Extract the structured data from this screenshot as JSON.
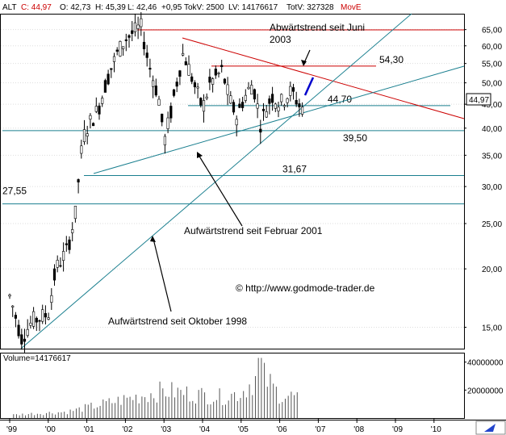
{
  "header": {
    "symbol": "ALT",
    "close_label": "C: 44,97",
    "open_label": "O: 42,73",
    "high_label": "H: 45,39",
    "low_label": "L: 42,46",
    "change_label": "+0,95",
    "tokv_label": "TokV: 2500",
    "lv_label": "LV: 14176617",
    "totv_label": "TotV: 327328",
    "indicator_label": "MovE",
    "colors": {
      "symbol": "#000000",
      "close": "#cc0000",
      "indicator": "#cc0000"
    }
  },
  "volume_label": "Volume=14176617",
  "copyright": "© http://www.godmode-trader.de",
  "last_price_tag": "44,97",
  "chart_data": {
    "type": "candlestick",
    "y_scale": "log",
    "ylim": [
      13.5,
      70
    ],
    "y_ticks": [
      {
        "value": 65,
        "label": "65,00"
      },
      {
        "value": 60,
        "label": "60,00"
      },
      {
        "value": 55,
        "label": "55,00"
      },
      {
        "value": 50,
        "label": "50,00"
      },
      {
        "value": 45,
        "label": "45,00"
      },
      {
        "value": 40,
        "label": "40,00"
      },
      {
        "value": 35,
        "label": "35,00"
      },
      {
        "value": 30,
        "label": "30,00"
      },
      {
        "value": 25,
        "label": "25,00"
      },
      {
        "value": 20,
        "label": "20,00"
      },
      {
        "value": 15,
        "label": "15,00"
      }
    ],
    "x_ticks": [
      "'99",
      "'00",
      "'01",
      "'02",
      "'03",
      "'04",
      "'05",
      "'06",
      "'07",
      "'08",
      "'09",
      "'10"
    ],
    "price_path": [
      [
        "'99",
        17.5
      ],
      [
        "'99+0.3",
        14.2
      ],
      [
        "'99+0.6",
        15.5
      ],
      [
        "'00",
        16
      ],
      [
        "'00+0.2",
        20
      ],
      [
        "'00+0.5",
        22
      ],
      [
        "'00+0.7",
        26
      ],
      [
        "'00+0.9",
        38
      ],
      [
        "'01",
        40
      ],
      [
        "'01+0.3",
        44
      ],
      [
        "'01+0.6",
        53
      ],
      [
        "'01+0.8",
        58
      ],
      [
        "'02",
        62
      ],
      [
        "'02+0.4",
        66
      ],
      [
        "'02+0.6",
        55
      ],
      [
        "'02+0.9",
        45
      ],
      [
        "'03",
        37
      ],
      [
        "'03+0.2",
        44
      ],
      [
        "'03+0.5",
        58
      ],
      [
        "'03+0.8",
        49
      ],
      [
        "'04",
        44
      ],
      [
        "'04+0.2",
        50
      ],
      [
        "'04+0.5",
        53
      ],
      [
        "'04+0.7",
        46
      ],
      [
        "'04+0.9",
        42
      ],
      [
        "'05",
        45
      ],
      [
        "'05+0.3",
        50
      ],
      [
        "'05+0.5",
        41
      ],
      [
        "'05+0.8",
        47
      ],
      [
        "'06",
        45
      ],
      [
        "'06+0.3",
        48
      ],
      [
        "'06+0.5",
        45
      ],
      [
        "'06+0.55",
        43
      ],
      [
        "'06+0.6",
        44.97
      ]
    ],
    "volume": {
      "ylim": [
        0,
        45000000
      ],
      "ticks": [
        {
          "value": 40000000,
          "label": "40000000"
        },
        {
          "value": 20000000,
          "label": "20000000"
        }
      ],
      "bars": [
        [
          "'99+0.1",
          3000000
        ],
        [
          "'99+0.5",
          4000000
        ],
        [
          "'00",
          5000000
        ],
        [
          "'00+0.5",
          6000000
        ],
        [
          "'01",
          10000000
        ],
        [
          "'01+0.5",
          14000000
        ],
        [
          "'02",
          18000000
        ],
        [
          "'02+0.5",
          22000000
        ],
        [
          "'03",
          26000000
        ],
        [
          "'03+0.5",
          24000000
        ],
        [
          "'04",
          22000000
        ],
        [
          "'04+0.5",
          20000000
        ],
        [
          "'05",
          24000000
        ],
        [
          "'05+0.5",
          43000000
        ],
        [
          "'06",
          22000000
        ],
        [
          "'06+0.5",
          20000000
        ]
      ]
    },
    "horizontal_levels": [
      {
        "value": 64.9,
        "color": "#cc0000",
        "label": ""
      },
      {
        "value": 54.3,
        "color": "#cc0000",
        "label": "54,30"
      },
      {
        "value": 44.7,
        "color": "#1a7f8f",
        "label": "44,70"
      },
      {
        "value": 39.5,
        "color": "#1a7f8f",
        "label": "39,50"
      },
      {
        "value": 31.67,
        "color": "#1a7f8f",
        "label": "31,67"
      },
      {
        "value": 27.55,
        "color": "#1a7f8f",
        "label": "27,55"
      }
    ],
    "trendlines": [
      {
        "label": "Abwärtstrend seit Juni 2003",
        "color": "#cc0000"
      },
      {
        "label": "Aufwärtstrend seit Februar 2001",
        "color": "#1a7f8f"
      },
      {
        "label": "Aufwärtstrend seit Oktober 1998",
        "color": "#1a7f8f"
      }
    ],
    "annotations": [
      {
        "text": "Abwärtstrend seit Juni"
      },
      {
        "text": "2003"
      },
      {
        "text": "Aufwärtstrend seit Februar 2001"
      },
      {
        "text": "Aufwärtstrend seit Oktober 1998"
      }
    ],
    "colors": {
      "candle": "#000000",
      "bear_wick": "#cc0000",
      "resistance": "#cc0000",
      "support": "#1a7f8f",
      "forecast_arrow": "#0000cc"
    }
  }
}
